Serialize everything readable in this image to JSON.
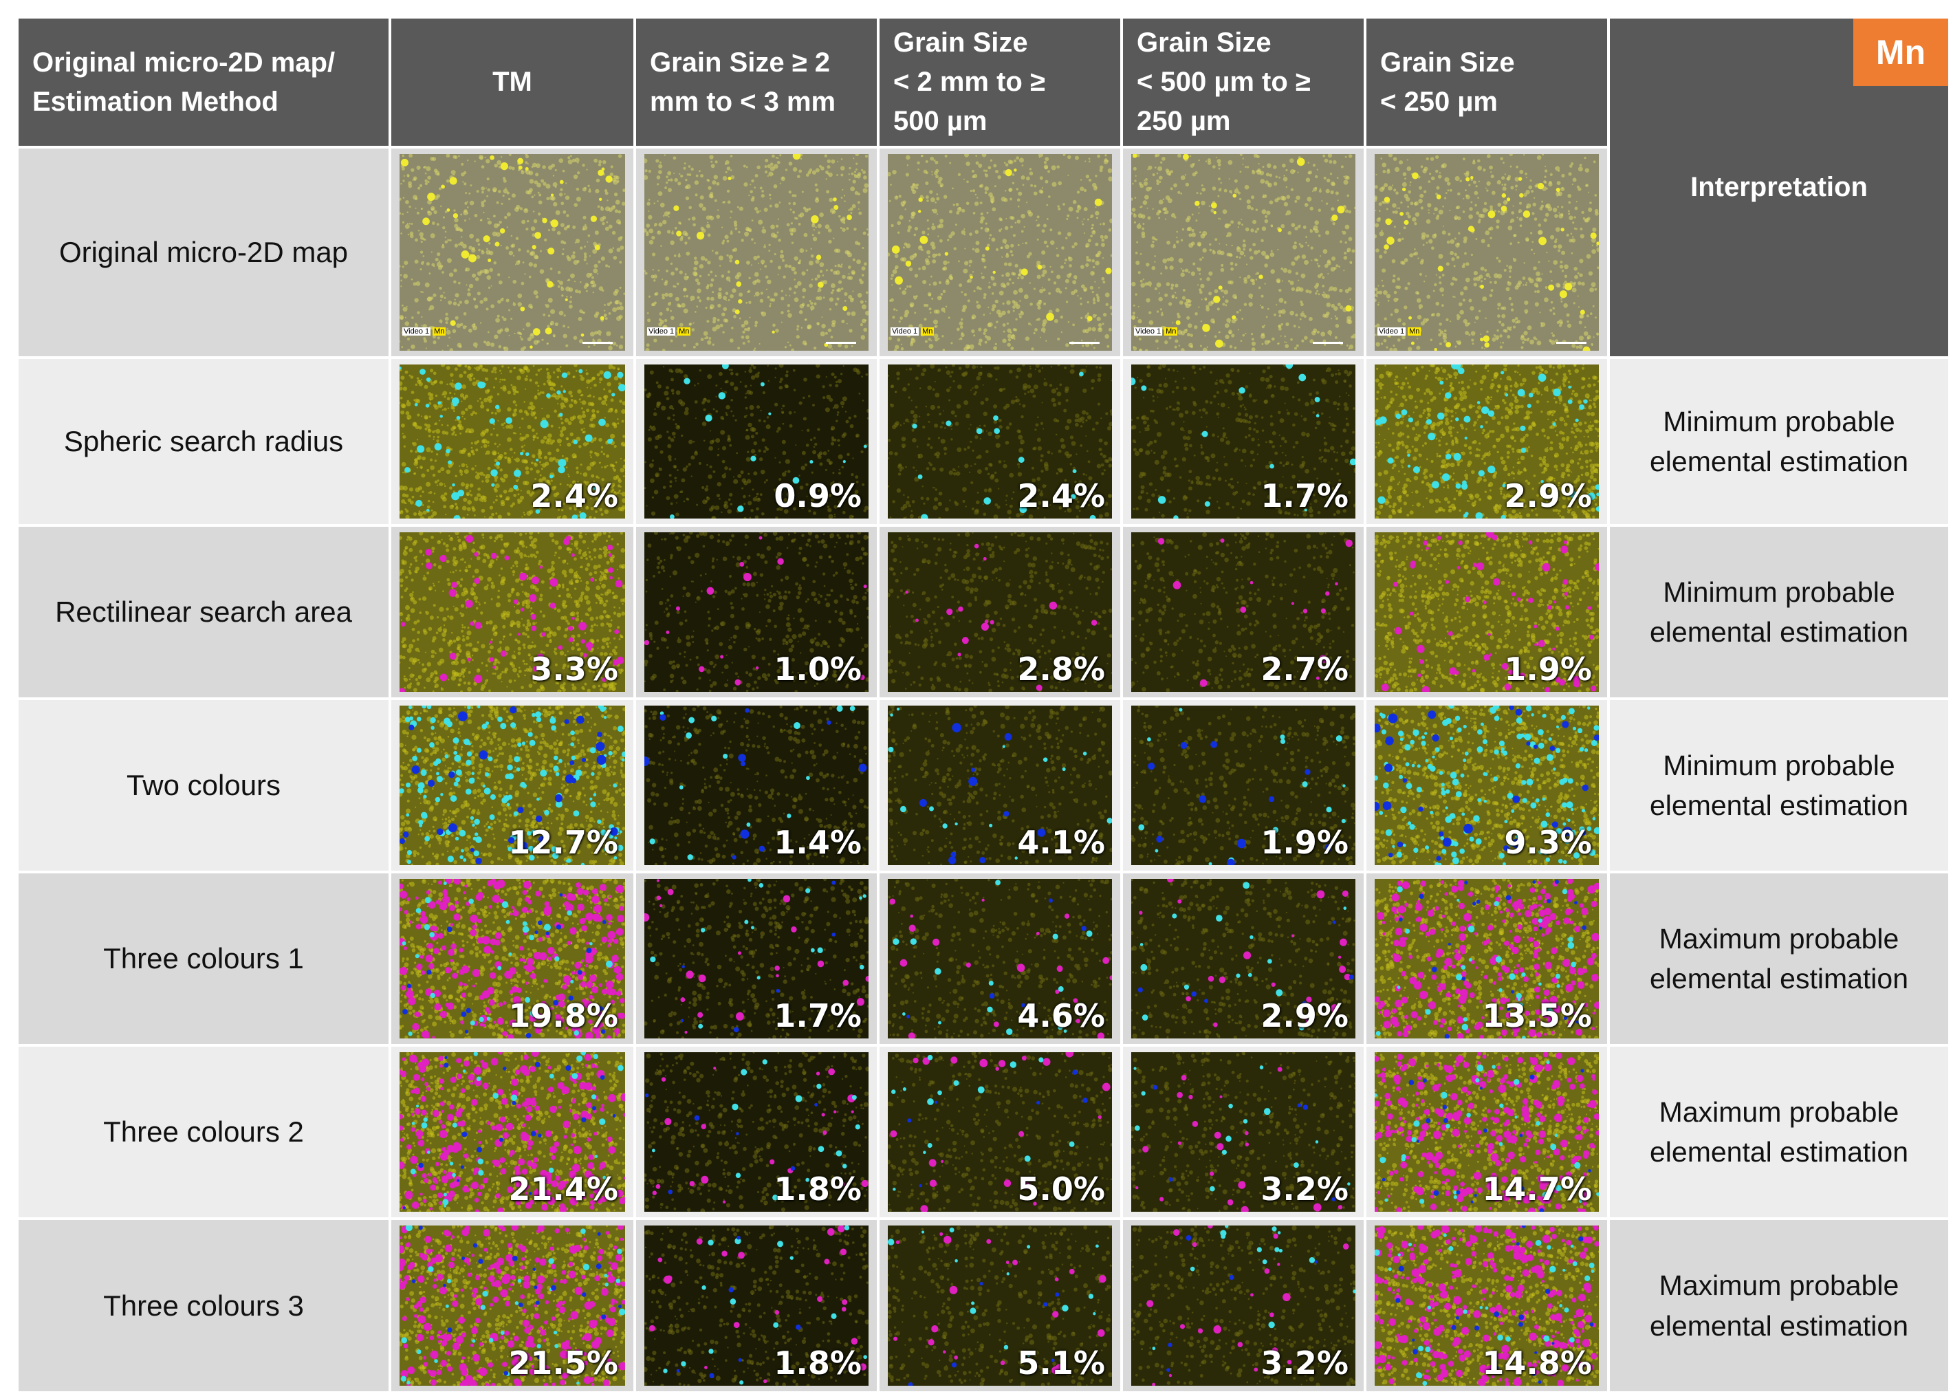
{
  "header": {
    "method_col": "Original micro-2D map/\nEstimation Method",
    "columns": [
      "TM",
      "Grain Size  ≥ 2\nmm to < 3 mm",
      "Grain Size\n< 2 mm to ≥\n500 µm",
      "Grain Size\n< 500 µm to ≥\n250 µm",
      "Grain Size\n< 250 µm"
    ],
    "interpretation": "Interpretation",
    "element_badge": "Mn"
  },
  "original_row": {
    "label": "Original micro-2D map",
    "micro_tag": "Video 1",
    "micro_tag_el": "Mn"
  },
  "rows": [
    {
      "label": "Spheric search radius",
      "interpretation": "Minimum probable\nelemental estimation",
      "values": [
        "2.4%",
        "0.9%",
        "2.4%",
        "1.7%",
        "2.9%"
      ]
    },
    {
      "label": "Rectilinear search area",
      "interpretation": "Minimum probable\nelemental estimation",
      "values": [
        "3.3%",
        "1.0%",
        "2.8%",
        "2.7%",
        "1.9%"
      ]
    },
    {
      "label": "Two colours",
      "interpretation": "Minimum probable\nelemental estimation",
      "values": [
        "12.7%",
        "1.4%",
        "4.1%",
        "1.9%",
        "9.3%"
      ]
    },
    {
      "label": "Three colours 1",
      "interpretation": "Maximum probable\nelemental estimation",
      "values": [
        "19.8%",
        "1.7%",
        "4.6%",
        "2.9%",
        "13.5%"
      ]
    },
    {
      "label": "Three colours 2",
      "interpretation": "Maximum probable\nelemental estimation",
      "values": [
        "21.4%",
        "1.8%",
        "5.0%",
        "3.2%",
        "14.7%"
      ]
    },
    {
      "label": "Three colours 3",
      "interpretation": "Maximum probable\nelemental estimation",
      "values": [
        "21.5%",
        "1.8%",
        "5.1%",
        "3.2%",
        "14.8%"
      ]
    }
  ],
  "colors": {
    "header_bg": "#595959",
    "badge_bg": "#ee7d31",
    "row_dark": "#d9d9d9",
    "row_light": "#ededed",
    "mn_yellow": "#c8c200",
    "cyan": "#3fe0e6",
    "magenta": "#e020c0",
    "blue": "#1030e0"
  }
}
